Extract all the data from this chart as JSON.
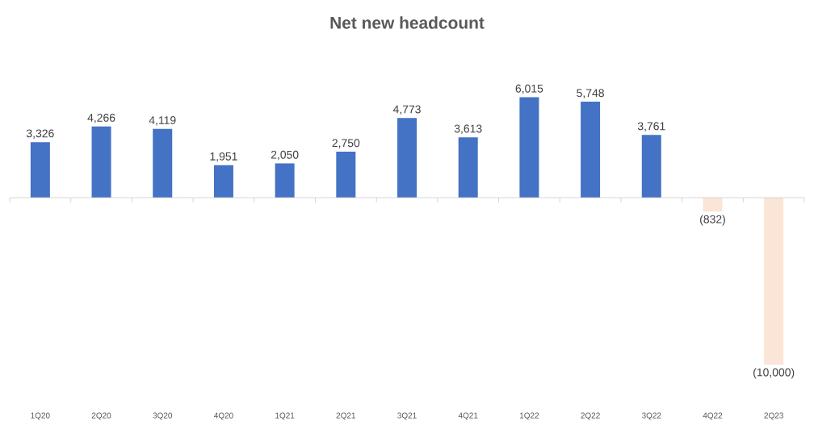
{
  "chart_data": {
    "type": "bar",
    "title": "Net new headcount",
    "categories": [
      "1Q20",
      "2Q20",
      "3Q20",
      "4Q20",
      "1Q21",
      "2Q21",
      "3Q21",
      "4Q21",
      "1Q22",
      "2Q22",
      "3Q22",
      "4Q22",
      "2Q23"
    ],
    "values": [
      3326,
      4266,
      4119,
      1951,
      2050,
      2750,
      4773,
      3613,
      6015,
      5748,
      3761,
      -832,
      -10000
    ],
    "value_labels": [
      "3,326",
      "4,266",
      "4,119",
      "1,951",
      "2,050",
      "2,750",
      "4,773",
      "3,613",
      "6,015",
      "5,748",
      "3,761",
      "(832)",
      "(10,000)"
    ],
    "colors": [
      "#4472c4",
      "#4472c4",
      "#4472c4",
      "#4472c4",
      "#4472c4",
      "#4472c4",
      "#4472c4",
      "#4472c4",
      "#4472c4",
      "#4472c4",
      "#4472c4",
      "#fbe5d6",
      "#fbe5d6"
    ]
  }
}
